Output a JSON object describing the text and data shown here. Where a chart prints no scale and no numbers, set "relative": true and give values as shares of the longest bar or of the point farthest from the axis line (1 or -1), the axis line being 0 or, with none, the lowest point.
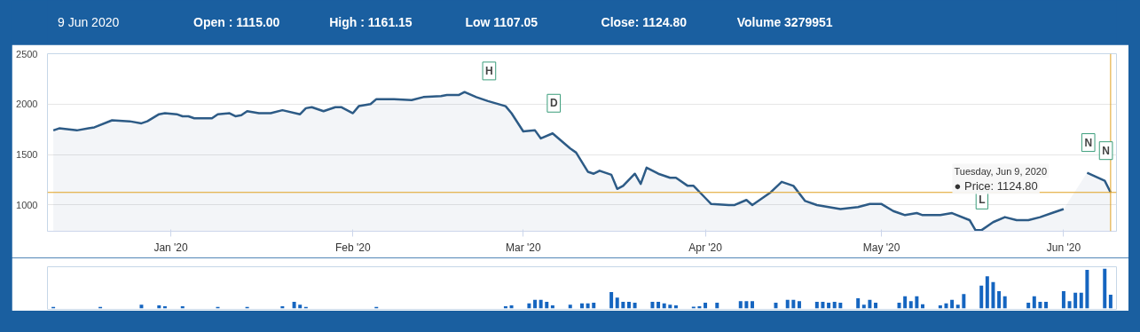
{
  "chart_data": [
    {
      "type": "area",
      "x": [
        "2019-12-12",
        "2019-12-13",
        "2019-12-16",
        "2019-12-18",
        "2019-12-19",
        "2019-12-22",
        "2019-12-25",
        "2019-12-27",
        "2019-12-28",
        "2019-12-30",
        "2019-12-31",
        "2020-01-02",
        "2020-01-03",
        "2020-01-04",
        "2020-01-05",
        "2020-01-08",
        "2020-01-09",
        "2020-01-11",
        "2020-01-12",
        "2020-01-13",
        "2020-01-14",
        "2020-01-16",
        "2020-01-18",
        "2020-01-20",
        "2020-01-23",
        "2020-01-24",
        "2020-01-25",
        "2020-01-27",
        "2020-01-29",
        "2020-01-30",
        "2020-02-01",
        "2020-02-02",
        "2020-02-04",
        "2020-02-05",
        "2020-02-08",
        "2020-02-11",
        "2020-02-13",
        "2020-02-16",
        "2020-02-17",
        "2020-02-19",
        "2020-02-20",
        "2020-02-22",
        "2020-02-24",
        "2020-02-27",
        "2020-02-28",
        "2020-03-01",
        "2020-03-03",
        "2020-03-04",
        "2020-03-06",
        "2020-03-09",
        "2020-03-10",
        "2020-03-12",
        "2020-03-13",
        "2020-03-14",
        "2020-03-16",
        "2020-03-17",
        "2020-03-18",
        "2020-03-20",
        "2020-03-21",
        "2020-03-22",
        "2020-03-24",
        "2020-03-26",
        "2020-03-27",
        "2020-03-29",
        "2020-03-30",
        "2020-04-01",
        "2020-04-02",
        "2020-04-05",
        "2020-04-06",
        "2020-04-08",
        "2020-04-09",
        "2020-04-12",
        "2020-04-14",
        "2020-04-16",
        "2020-04-18",
        "2020-04-20",
        "2020-04-24",
        "2020-04-27",
        "2020-04-29",
        "2020-05-01",
        "2020-05-03",
        "2020-05-05",
        "2020-05-07",
        "2020-05-08",
        "2020-05-11",
        "2020-05-13",
        "2020-05-16",
        "2020-05-17",
        "2020-05-18",
        "2020-05-20",
        "2020-05-22",
        "2020-05-24",
        "2020-05-26",
        "2020-05-28",
        "2020-05-30",
        "2020-06-01",
        "2020-06-03",
        "2020-06-05",
        "2020-06-08",
        "2020-06-09"
      ],
      "series": [
        {
          "color": "#2d5b86",
          "values": [
            1740,
            1760,
            1740,
            1760,
            1770,
            1840,
            1830,
            1810,
            1830,
            1900,
            1910,
            1900,
            1880,
            1880,
            1860,
            1860,
            1900,
            1910,
            1880,
            1890,
            1930,
            1910,
            1910,
            1940,
            1900,
            1960,
            1970,
            1930,
            1970,
            1970,
            1910,
            1980,
            2000,
            2050,
            2050,
            2040,
            2070,
            2080,
            2090,
            2090,
            2120,
            2070,
            2030,
            1980,
            1910,
            1730,
            1740,
            1660,
            1710,
            1560,
            1520,
            1330,
            1310,
            1340,
            1300,
            1160,
            1190,
            1310,
            1210,
            1370,
            1310,
            1270,
            1270,
            1190,
            1190,
            1070,
            1010,
            1000,
            1000,
            1050,
            1000,
            1120,
            1230,
            1190,
            1040,
            1000,
            960,
            980,
            1010,
            1010,
            940,
            900,
            920,
            900,
            900,
            920,
            850,
            750,
            750,
            830,
            880,
            850,
            850,
            880,
            920,
            960,
            null,
            1320,
            1240,
            1124.8
          ]
        }
      ],
      "xlim": [
        "2019-12-11",
        "2020-06-10"
      ],
      "xticks": [
        {
          "value": "2020-01-01",
          "label": "Jan '20"
        },
        {
          "value": "2020-02-01",
          "label": "Feb '20"
        },
        {
          "value": "2020-03-01",
          "label": "Mar '20"
        },
        {
          "value": "2020-04-01",
          "label": "Apr '20"
        },
        {
          "value": "2020-05-01",
          "label": "May '20"
        },
        {
          "value": "2020-06-01",
          "label": "Jun '20"
        }
      ],
      "ylim": [
        740,
        2500
      ],
      "yticks": [
        1000,
        1500,
        2000,
        2500
      ],
      "grid": "y",
      "ref_lines": [
        {
          "axis": "x",
          "value": "2020-06-09",
          "color": "#e0a020"
        },
        {
          "axis": "y",
          "value": 1124.8,
          "color": "#e0a020"
        }
      ],
      "annotations": [
        "9 Jun 2020",
        "Open : 1115.00",
        "High : 1161.15",
        "Low 1107.05",
        "Close: 1124.80",
        "Volume 3279951",
        {
          "text": "H",
          "x": "2020-02-24",
          "y": 2030
        },
        {
          "text": "D",
          "x": "2020-03-06",
          "y": 1710
        },
        {
          "text": "L",
          "x": "2020-05-18",
          "y": 750
        },
        {
          "text": "N",
          "x": "2020-06-05",
          "y": 1320
        },
        {
          "text": "N",
          "x": "2020-06-08",
          "y": 1240
        },
        "Tuesday, Jun 9, 2020",
        "● Price: 1124.80"
      ]
    },
    {
      "type": "bar",
      "relative": true,
      "tick_labels": false,
      "xlim": [
        "2019-12-11",
        "2020-06-10"
      ],
      "x": [
        "2019-12-12",
        "2019-12-20",
        "2019-12-27",
        "2019-12-30",
        "2019-12-31",
        "2020-01-03",
        "2020-01-09",
        "2020-01-14",
        "2020-01-20",
        "2020-01-22",
        "2020-01-23",
        "2020-01-24",
        "2020-02-05",
        "2020-02-27",
        "2020-02-28",
        "2020-03-02",
        "2020-03-03",
        "2020-03-04",
        "2020-03-05",
        "2020-03-06",
        "2020-03-09",
        "2020-03-11",
        "2020-03-12",
        "2020-03-13",
        "2020-03-16",
        "2020-03-17",
        "2020-03-18",
        "2020-03-19",
        "2020-03-20",
        "2020-03-23",
        "2020-03-24",
        "2020-03-25",
        "2020-03-26",
        "2020-03-27",
        "2020-03-30",
        "2020-03-31",
        "2020-04-01",
        "2020-04-03",
        "2020-04-07",
        "2020-04-08",
        "2020-04-09",
        "2020-04-13",
        "2020-04-15",
        "2020-04-16",
        "2020-04-17",
        "2020-04-20",
        "2020-04-21",
        "2020-04-22",
        "2020-04-23",
        "2020-04-24",
        "2020-04-27",
        "2020-04-28",
        "2020-04-29",
        "2020-04-30",
        "2020-05-04",
        "2020-05-05",
        "2020-05-06",
        "2020-05-07",
        "2020-05-08",
        "2020-05-11",
        "2020-05-12",
        "2020-05-13",
        "2020-05-14",
        "2020-05-15",
        "2020-05-18",
        "2020-05-19",
        "2020-05-20",
        "2020-05-21",
        "2020-05-22",
        "2020-05-26",
        "2020-05-27",
        "2020-05-28",
        "2020-05-29",
        "2020-06-01",
        "2020-06-02",
        "2020-06-03",
        "2020-06-04",
        "2020-06-05",
        "2020-06-08",
        "2020-06-09"
      ],
      "series": [
        {
          "color": "#1565c0",
          "values": [
            0.03,
            0.03,
            0.09,
            0.07,
            0.05,
            0.05,
            0.03,
            0.03,
            0.05,
            0.16,
            0.09,
            0.03,
            0.03,
            0.05,
            0.07,
            0.12,
            0.21,
            0.21,
            0.16,
            0.07,
            0.09,
            0.12,
            0.12,
            0.14,
            0.41,
            0.27,
            0.16,
            0.16,
            0.14,
            0.16,
            0.16,
            0.12,
            0.09,
            0.07,
            0.04,
            0.05,
            0.14,
            0.14,
            0.18,
            0.18,
            0.18,
            0.14,
            0.21,
            0.21,
            0.18,
            0.16,
            0.16,
            0.14,
            0.16,
            0.14,
            0.25,
            0.09,
            0.21,
            0.14,
            0.14,
            0.3,
            0.18,
            0.3,
            0.1,
            0.07,
            0.12,
            0.21,
            0.09,
            0.36,
            0.57,
            0.81,
            0.66,
            0.43,
            0.3,
            0.14,
            0.3,
            0.16,
            0.16,
            0.43,
            0.18,
            0.39,
            0.39,
            0.97,
            1,
            0.34
          ]
        }
      ]
    }
  ]
}
